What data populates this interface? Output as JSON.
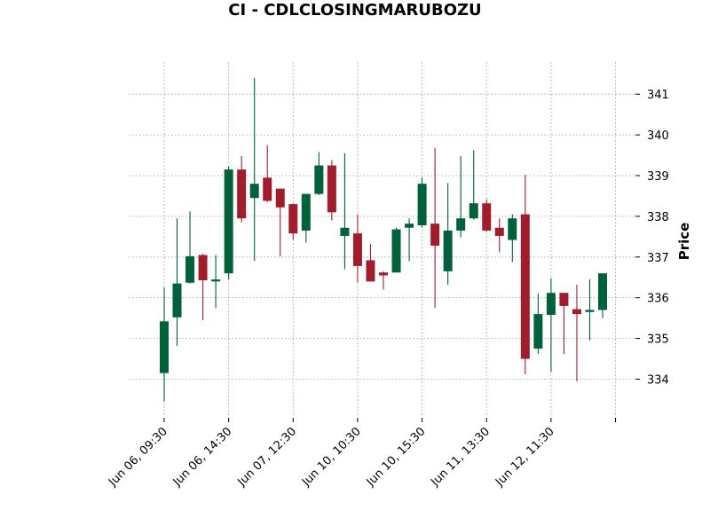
{
  "chart_data": {
    "type": "candlestick",
    "title": "CI - CDLCLOSINGMARUBOZU",
    "xlabel": "",
    "ylabel": "Price",
    "y_ticks": [
      334,
      335,
      336,
      337,
      338,
      339,
      340,
      341
    ],
    "x_tick_labels": [
      "Jun 06, 09:30",
      "Jun 06, 14:30",
      "Jun 07, 12:30",
      "Jun 10, 10:30",
      "Jun 10, 15:30",
      "Jun 11, 13:30",
      "Jun 12, 11:30"
    ],
    "x_tick_positions": [
      0,
      5,
      10,
      15,
      20,
      25,
      30
    ],
    "grid": true,
    "axis_side": "right",
    "up_color": "#00613a",
    "down_color": "#a11d2b",
    "candles": [
      {
        "o": 334.15,
        "h": 336.25,
        "l": 333.45,
        "c": 335.42
      },
      {
        "o": 335.52,
        "h": 337.95,
        "l": 334.82,
        "c": 336.35
      },
      {
        "o": 336.37,
        "h": 338.12,
        "l": 336.35,
        "c": 337.02
      },
      {
        "o": 337.05,
        "h": 337.08,
        "l": 335.45,
        "c": 336.43
      },
      {
        "o": 336.4,
        "h": 337.05,
        "l": 335.75,
        "c": 336.45
      },
      {
        "o": 336.6,
        "h": 339.22,
        "l": 336.45,
        "c": 339.15
      },
      {
        "o": 339.15,
        "h": 339.48,
        "l": 337.85,
        "c": 337.95
      },
      {
        "o": 338.45,
        "h": 341.4,
        "l": 336.9,
        "c": 338.8
      },
      {
        "o": 338.95,
        "h": 339.75,
        "l": 338.35,
        "c": 338.38
      },
      {
        "o": 338.68,
        "h": 338.68,
        "l": 337.02,
        "c": 338.22
      },
      {
        "o": 338.3,
        "h": 338.32,
        "l": 337.42,
        "c": 337.58
      },
      {
        "o": 337.65,
        "h": 338.55,
        "l": 337.35,
        "c": 338.55
      },
      {
        "o": 338.55,
        "h": 339.58,
        "l": 338.52,
        "c": 339.25
      },
      {
        "o": 339.25,
        "h": 339.38,
        "l": 337.9,
        "c": 338.1
      },
      {
        "o": 337.52,
        "h": 339.55,
        "l": 336.7,
        "c": 337.72
      },
      {
        "o": 337.58,
        "h": 338.05,
        "l": 336.38,
        "c": 336.78
      },
      {
        "o": 336.92,
        "h": 337.32,
        "l": 336.4,
        "c": 336.4
      },
      {
        "o": 336.62,
        "h": 336.65,
        "l": 336.2,
        "c": 336.55
      },
      {
        "o": 336.62,
        "h": 337.72,
        "l": 336.62,
        "c": 337.68
      },
      {
        "o": 337.72,
        "h": 337.95,
        "l": 336.9,
        "c": 337.82
      },
      {
        "o": 337.78,
        "h": 338.95,
        "l": 337.72,
        "c": 338.8
      },
      {
        "o": 337.82,
        "h": 339.68,
        "l": 335.75,
        "c": 337.28
      },
      {
        "o": 336.65,
        "h": 338.82,
        "l": 336.32,
        "c": 337.65
      },
      {
        "o": 337.65,
        "h": 339.48,
        "l": 337.48,
        "c": 337.95
      },
      {
        "o": 337.95,
        "h": 339.62,
        "l": 337.92,
        "c": 338.32
      },
      {
        "o": 338.32,
        "h": 338.42,
        "l": 337.62,
        "c": 337.65
      },
      {
        "o": 337.72,
        "h": 337.95,
        "l": 337.12,
        "c": 337.52
      },
      {
        "o": 337.42,
        "h": 338.05,
        "l": 336.88,
        "c": 337.95
      },
      {
        "o": 338.05,
        "h": 339.02,
        "l": 334.12,
        "c": 334.5
      },
      {
        "o": 334.75,
        "h": 336.1,
        "l": 334.62,
        "c": 335.6
      },
      {
        "o": 335.58,
        "h": 336.48,
        "l": 334.18,
        "c": 336.12
      },
      {
        "o": 336.12,
        "h": 336.12,
        "l": 334.62,
        "c": 335.8
      },
      {
        "o": 335.72,
        "h": 336.32,
        "l": 333.95,
        "c": 335.6
      },
      {
        "o": 335.65,
        "h": 336.45,
        "l": 334.95,
        "c": 335.7
      },
      {
        "o": 335.7,
        "h": 336.6,
        "l": 335.5,
        "c": 336.6
      }
    ]
  }
}
